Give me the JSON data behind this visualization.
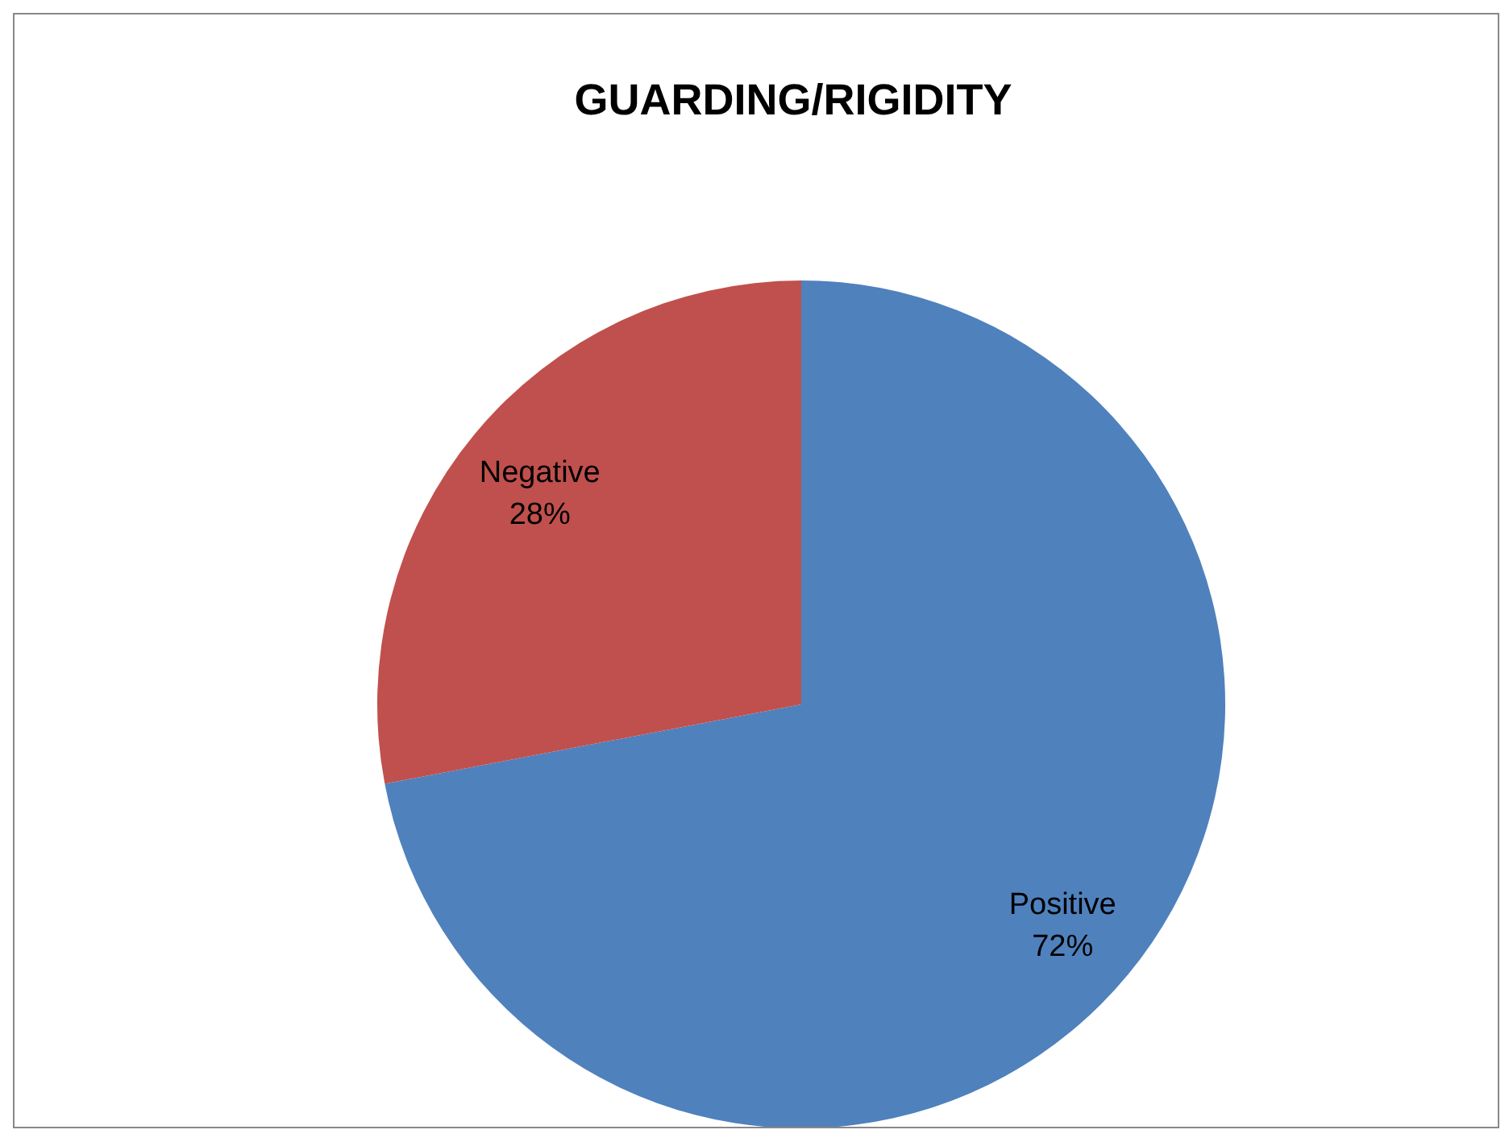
{
  "chart_data": {
    "type": "pie",
    "title": "GUARDING/RIGIDITY",
    "categories": [
      "Positive",
      "Negative"
    ],
    "values": [
      72,
      28
    ],
    "colors": [
      "#4f81bd",
      "#c0504d"
    ],
    "value_labels": [
      "72%",
      "28%"
    ],
    "legend": false
  }
}
